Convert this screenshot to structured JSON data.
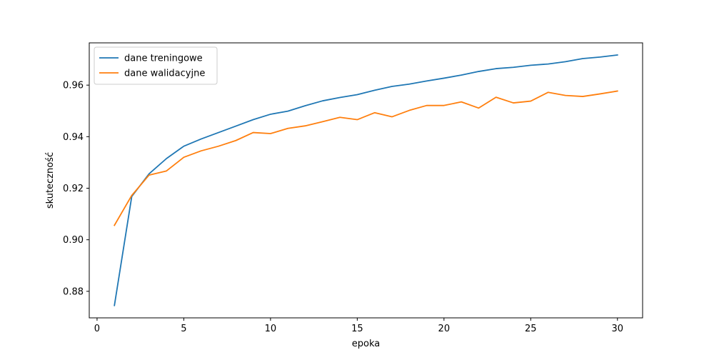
{
  "chart_data": {
    "type": "line",
    "title": "",
    "xlabel": "epoka",
    "ylabel": "skuteczność",
    "xlim": [
      -0.45,
      31.45
    ],
    "ylim": [
      0.8697,
      0.9764
    ],
    "xticks": [
      0,
      5,
      10,
      15,
      20,
      25,
      30
    ],
    "xtick_labels": [
      "0",
      "5",
      "10",
      "15",
      "20",
      "25",
      "30"
    ],
    "yticks": [
      0.88,
      0.9,
      0.92,
      0.94,
      0.96
    ],
    "ytick_labels": [
      "0.88",
      "0.90",
      "0.92",
      "0.94",
      "0.96"
    ],
    "grid": false,
    "legend_position": "top-left",
    "x": [
      1,
      2,
      3,
      4,
      5,
      6,
      7,
      8,
      9,
      10,
      11,
      12,
      13,
      14,
      15,
      16,
      17,
      18,
      19,
      20,
      21,
      22,
      23,
      24,
      25,
      26,
      27,
      28,
      29,
      30
    ],
    "series": [
      {
        "name": "dane treningowe",
        "color": "#1f77b4",
        "values": [
          0.8745,
          0.9168,
          0.9256,
          0.9315,
          0.9363,
          0.9391,
          0.9416,
          0.9441,
          0.9466,
          0.9487,
          0.9499,
          0.952,
          0.9539,
          0.9552,
          0.9563,
          0.958,
          0.9595,
          0.9604,
          0.9616,
          0.9627,
          0.9639,
          0.9653,
          0.9664,
          0.9669,
          0.9677,
          0.9682,
          0.9691,
          0.9703,
          0.9709,
          0.9717
        ]
      },
      {
        "name": "dane walidacyjne",
        "color": "#ff7f0e",
        "values": [
          0.9056,
          0.9172,
          0.9251,
          0.9267,
          0.932,
          0.9345,
          0.9363,
          0.9385,
          0.9416,
          0.9412,
          0.9432,
          0.9442,
          0.9458,
          0.9475,
          0.9466,
          0.9493,
          0.9477,
          0.9502,
          0.9521,
          0.9521,
          0.9535,
          0.9511,
          0.9553,
          0.9531,
          0.9538,
          0.9572,
          0.956,
          0.9556,
          0.9566,
          0.9577
        ]
      }
    ]
  }
}
